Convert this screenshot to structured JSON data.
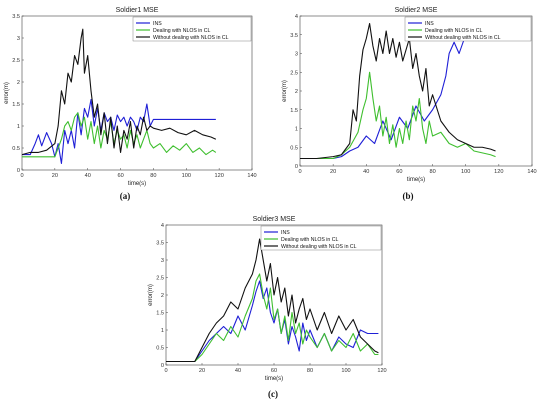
{
  "chart_data": [
    {
      "type": "line",
      "title": "Soldier1 MSE",
      "xlabel": "time(s)",
      "ylabel": "error(m)",
      "panel_label": "(a)",
      "xlim": [
        0,
        140
      ],
      "ylim": [
        0,
        3.5
      ],
      "xticks": [
        0,
        20,
        40,
        60,
        80,
        100,
        120,
        140
      ],
      "yticks": [
        0,
        0.5,
        1,
        1.5,
        2,
        2.5,
        3,
        3.5
      ],
      "xtick_labels": [
        "0",
        "20",
        "40",
        "60",
        "80",
        "100",
        "120",
        "140"
      ],
      "ytick_labels": [
        "0",
        "0.5",
        "1",
        "1.5",
        "2",
        "2.5",
        "3",
        "3.5"
      ],
      "legend_position": "top-right",
      "series": [
        {
          "name": "INS",
          "color": "#1f1fd6",
          "x": [
            0,
            5,
            8,
            10,
            12,
            15,
            18,
            20,
            22,
            24,
            26,
            28,
            30,
            32,
            34,
            36,
            38,
            40,
            42,
            44,
            46,
            48,
            50,
            52,
            54,
            56,
            58,
            60,
            62,
            64,
            66,
            68,
            70,
            72,
            74,
            76,
            78,
            80,
            85,
            90,
            100,
            110,
            118
          ],
          "y": [
            0.35,
            0.35,
            0.6,
            0.8,
            0.55,
            0.85,
            0.6,
            0.3,
            0.6,
            0.15,
            0.9,
            0.6,
            0.9,
            0.5,
            1.3,
            0.8,
            1.4,
            1.2,
            1.6,
            1.0,
            1.4,
            0.9,
            1.3,
            1.1,
            1.2,
            0.9,
            1.25,
            1.1,
            1.2,
            1.0,
            1.2,
            1.1,
            0.9,
            1.2,
            1.1,
            1.5,
            1.0,
            1.15,
            1.15,
            1.15,
            1.15,
            1.15,
            1.15
          ]
        },
        {
          "name": "Dealing with NLOS in CL",
          "color": "#3fbf2f",
          "x": [
            0,
            5,
            10,
            15,
            20,
            22,
            24,
            26,
            28,
            30,
            32,
            34,
            36,
            38,
            40,
            42,
            44,
            46,
            48,
            50,
            52,
            54,
            56,
            58,
            60,
            62,
            64,
            66,
            68,
            70,
            72,
            74,
            76,
            78,
            80,
            84,
            88,
            92,
            96,
            100,
            104,
            108,
            112,
            116,
            118
          ],
          "y": [
            0.3,
            0.3,
            0.3,
            0.3,
            0.3,
            0.5,
            0.7,
            1.0,
            1.1,
            0.9,
            1.2,
            1.3,
            1.0,
            1.2,
            0.7,
            1.1,
            0.6,
            1.0,
            0.5,
            0.9,
            0.7,
            1.1,
            0.6,
            0.9,
            0.7,
            0.8,
            0.5,
            0.9,
            0.6,
            0.8,
            0.5,
            0.7,
            0.9,
            0.6,
            0.5,
            0.6,
            0.4,
            0.55,
            0.45,
            0.6,
            0.4,
            0.5,
            0.35,
            0.45,
            0.4
          ]
        },
        {
          "name": "Without dealing with NLOS in CL",
          "color": "#111111",
          "x": [
            0,
            5,
            10,
            15,
            20,
            22,
            24,
            26,
            28,
            30,
            32,
            34,
            36,
            37,
            38,
            40,
            42,
            44,
            46,
            48,
            50,
            52,
            54,
            56,
            58,
            60,
            62,
            64,
            66,
            68,
            70,
            72,
            74,
            76,
            78,
            80,
            85,
            90,
            95,
            100,
            105,
            110,
            115,
            118
          ],
          "y": [
            0.35,
            0.4,
            0.4,
            0.45,
            0.6,
            1.0,
            1.8,
            1.5,
            2.2,
            2.0,
            2.6,
            2.4,
            3.0,
            3.2,
            2.2,
            2.6,
            1.8,
            1.2,
            1.5,
            0.8,
            1.3,
            0.6,
            1.2,
            0.5,
            1.0,
            0.4,
            0.9,
            0.7,
            1.1,
            0.5,
            1.0,
            0.8,
            1.2,
            0.9,
            1.0,
            0.95,
            0.9,
            0.95,
            0.85,
            0.8,
            0.9,
            0.8,
            0.75,
            0.7
          ]
        }
      ]
    },
    {
      "type": "line",
      "title": "Soldier2 MSE",
      "xlabel": "time(s)",
      "ylabel": "error(m)",
      "panel_label": "(b)",
      "xlim": [
        0,
        140
      ],
      "ylim": [
        0,
        4
      ],
      "xticks": [
        0,
        20,
        40,
        60,
        80,
        100,
        120,
        140
      ],
      "yticks": [
        0,
        0.5,
        1,
        1.5,
        2,
        2.5,
        3,
        3.5,
        4
      ],
      "xtick_labels": [
        "0",
        "20",
        "40",
        "60",
        "80",
        "100",
        "120",
        "140"
      ],
      "ytick_labels": [
        "0",
        "0.5",
        "1",
        "1.5",
        "2",
        "2.5",
        "3",
        "3.5",
        "4"
      ],
      "legend_position": "top-right",
      "series": [
        {
          "name": "INS",
          "color": "#1f1fd6",
          "x": [
            0,
            10,
            20,
            25,
            30,
            35,
            40,
            45,
            50,
            55,
            60,
            65,
            70,
            75,
            80,
            85,
            88,
            90,
            93,
            96,
            100,
            103,
            106,
            110,
            115,
            118
          ],
          "y": [
            0.2,
            0.2,
            0.2,
            0.25,
            0.4,
            0.5,
            0.8,
            0.6,
            1.2,
            0.7,
            1.3,
            1.0,
            1.6,
            1.2,
            1.5,
            1.9,
            2.4,
            3.0,
            3.3,
            3.0,
            3.5,
            3.7,
            3.4,
            3.4,
            3.4,
            3.4
          ]
        },
        {
          "name": "Dealing with NLOS in CL",
          "color": "#3fbf2f",
          "x": [
            0,
            10,
            20,
            25,
            30,
            35,
            38,
            40,
            42,
            44,
            46,
            48,
            50,
            52,
            54,
            56,
            58,
            60,
            62,
            64,
            66,
            68,
            70,
            72,
            74,
            76,
            78,
            80,
            85,
            90,
            95,
            100,
            105,
            110,
            115,
            118
          ],
          "y": [
            0.2,
            0.2,
            0.2,
            0.3,
            0.5,
            0.9,
            1.5,
            1.8,
            2.5,
            1.8,
            1.2,
            1.6,
            0.8,
            1.3,
            0.6,
            1.1,
            0.5,
            1.0,
            0.6,
            1.2,
            0.7,
            1.6,
            1.2,
            1.8,
            1.0,
            0.6,
            1.2,
            0.8,
            0.9,
            0.6,
            0.5,
            0.6,
            0.4,
            0.35,
            0.3,
            0.25
          ]
        },
        {
          "name": "Without dealing with NLOS in CL",
          "color": "#111111",
          "x": [
            0,
            10,
            20,
            25,
            30,
            32,
            34,
            36,
            38,
            40,
            42,
            44,
            46,
            48,
            50,
            52,
            54,
            56,
            58,
            60,
            62,
            64,
            66,
            68,
            70,
            72,
            74,
            76,
            78,
            80,
            85,
            90,
            95,
            100,
            105,
            110,
            115,
            118
          ],
          "y": [
            0.2,
            0.2,
            0.25,
            0.3,
            0.6,
            1.5,
            1.2,
            2.4,
            3.1,
            3.4,
            3.8,
            3.2,
            2.8,
            3.4,
            3.0,
            3.6,
            3.0,
            3.4,
            2.9,
            3.3,
            2.8,
            3.1,
            3.4,
            2.6,
            3.0,
            2.4,
            2.0,
            2.6,
            1.6,
            1.9,
            1.2,
            0.9,
            0.7,
            0.6,
            0.5,
            0.5,
            0.45,
            0.4
          ]
        }
      ]
    },
    {
      "type": "line",
      "title": "Soldier3 MSE",
      "xlabel": "time(s)",
      "ylabel": "error(m)",
      "panel_label": "(c)",
      "xlim": [
        0,
        120
      ],
      "ylim": [
        0,
        4
      ],
      "xticks": [
        0,
        20,
        40,
        60,
        80,
        100,
        120
      ],
      "yticks": [
        0,
        0.5,
        1,
        1.5,
        2,
        2.5,
        3,
        3.5,
        4
      ],
      "xtick_labels": [
        "0",
        "20",
        "40",
        "60",
        "80",
        "100",
        "120"
      ],
      "ytick_labels": [
        "0",
        "0.5",
        "1",
        "1.5",
        "2",
        "2.5",
        "3",
        "3.5",
        "4"
      ],
      "legend_position": "top-right",
      "series": [
        {
          "name": "INS",
          "color": "#1f1fd6",
          "x": [
            0,
            10,
            16,
            20,
            24,
            28,
            32,
            36,
            40,
            44,
            48,
            50,
            52,
            54,
            56,
            58,
            60,
            62,
            64,
            66,
            68,
            70,
            72,
            74,
            76,
            78,
            80,
            84,
            88,
            92,
            96,
            100,
            104,
            108,
            112,
            116,
            118
          ],
          "y": [
            0.1,
            0.1,
            0.1,
            0.4,
            0.7,
            0.9,
            1.1,
            0.9,
            1.4,
            1.0,
            1.7,
            2.1,
            2.4,
            1.9,
            2.2,
            1.5,
            1.2,
            1.6,
            0.9,
            1.3,
            0.6,
            1.1,
            0.8,
            0.4,
            1.2,
            0.7,
            1.0,
            0.5,
            0.9,
            0.4,
            0.8,
            0.6,
            0.5,
            1.0,
            0.9,
            0.9,
            0.9
          ]
        },
        {
          "name": "Dealing with NLOS in CL",
          "color": "#3fbf2f",
          "x": [
            0,
            10,
            16,
            20,
            24,
            28,
            32,
            36,
            40,
            44,
            48,
            50,
            52,
            54,
            56,
            58,
            60,
            62,
            64,
            66,
            68,
            70,
            72,
            74,
            76,
            78,
            80,
            84,
            88,
            92,
            96,
            100,
            104,
            108,
            112,
            116,
            118
          ],
          "y": [
            0.1,
            0.1,
            0.1,
            0.3,
            0.6,
            0.9,
            0.7,
            1.1,
            0.8,
            1.4,
            1.9,
            2.4,
            2.6,
            2.0,
            1.6,
            2.2,
            1.3,
            1.6,
            0.9,
            1.4,
            0.7,
            1.5,
            0.9,
            1.2,
            0.6,
            1.0,
            0.8,
            0.5,
            0.9,
            0.4,
            0.7,
            0.5,
            0.9,
            0.4,
            0.6,
            0.3,
            0.3
          ]
        },
        {
          "name": "Without dealing with NLOS in CL",
          "color": "#111111",
          "x": [
            0,
            10,
            16,
            20,
            24,
            28,
            32,
            36,
            40,
            44,
            48,
            50,
            52,
            54,
            56,
            58,
            60,
            62,
            64,
            66,
            68,
            70,
            72,
            74,
            76,
            78,
            80,
            84,
            88,
            92,
            96,
            100,
            104,
            108,
            112,
            116,
            118
          ],
          "y": [
            0.1,
            0.1,
            0.1,
            0.5,
            0.9,
            1.2,
            1.4,
            1.8,
            1.6,
            2.2,
            2.6,
            3.0,
            3.6,
            3.0,
            2.4,
            2.9,
            2.0,
            2.5,
            1.8,
            2.2,
            1.4,
            2.0,
            1.2,
            1.6,
            1.9,
            1.3,
            1.6,
            1.0,
            1.5,
            0.9,
            1.4,
            1.0,
            1.3,
            0.8,
            0.6,
            0.4,
            0.35
          ]
        }
      ]
    }
  ]
}
